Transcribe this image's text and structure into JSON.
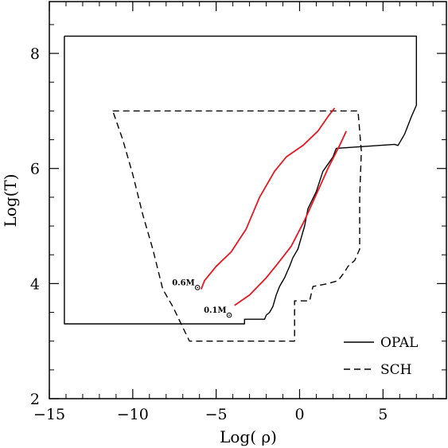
{
  "chart_data": {
    "type": "line",
    "xlabel": "Log( ρ)",
    "ylabel": "Log(T)",
    "xlim": [
      -15,
      8.8
    ],
    "ylim": [
      2,
      8.9
    ],
    "xticks": [
      -15,
      -10,
      -5,
      0,
      5
    ],
    "xtick_labels": [
      "−15",
      "−10",
      "−5",
      "0",
      "5"
    ],
    "yticks": [
      2,
      4,
      6,
      8
    ],
    "ytick_labels": [
      "2",
      "4",
      "6",
      "8"
    ],
    "grid": false,
    "legend_position": "bottom-right",
    "series": [
      {
        "name": "OPAL",
        "style": "solid",
        "color": "#000000",
        "points": [
          [
            -14.1,
            8.3
          ],
          [
            7.0,
            8.3
          ],
          [
            7.0,
            7.1
          ],
          [
            6.7,
            6.9
          ],
          [
            6.3,
            6.6
          ],
          [
            5.9,
            6.4
          ],
          [
            5.7,
            6.42
          ],
          [
            2.2,
            6.35
          ],
          [
            2.0,
            6.2
          ],
          [
            1.4,
            5.95
          ],
          [
            1.0,
            5.6
          ],
          [
            0.5,
            5.3
          ],
          [
            0.3,
            5.0
          ],
          [
            0.1,
            4.8
          ],
          [
            -0.1,
            4.6
          ],
          [
            -0.4,
            4.45
          ],
          [
            -0.6,
            4.3
          ],
          [
            -0.9,
            4.1
          ],
          [
            -1.2,
            3.95
          ],
          [
            -1.4,
            3.8
          ],
          [
            -1.6,
            3.6
          ],
          [
            -1.8,
            3.5
          ],
          [
            -2.0,
            3.45
          ],
          [
            -2.1,
            3.38
          ],
          [
            -3.3,
            3.38
          ],
          [
            -3.3,
            3.3
          ],
          [
            -14.1,
            3.3
          ],
          [
            -14.1,
            5.8
          ],
          [
            -14.1,
            8.3
          ]
        ]
      },
      {
        "name": "SCH",
        "style": "dashed",
        "color": "#000000",
        "points": [
          [
            -11.2,
            7.0
          ],
          [
            3.5,
            7.0
          ],
          [
            3.7,
            6.3
          ],
          [
            3.6,
            5.5
          ],
          [
            3.6,
            4.6
          ],
          [
            3.3,
            4.4
          ],
          [
            2.9,
            4.3
          ],
          [
            2.7,
            4.2
          ],
          [
            2.3,
            4.05
          ],
          [
            1.7,
            4.0
          ],
          [
            0.8,
            3.95
          ],
          [
            0.6,
            3.7
          ],
          [
            -0.3,
            3.7
          ],
          [
            -0.3,
            3.0
          ],
          [
            -6.6,
            3.0
          ],
          [
            -7.1,
            3.3
          ],
          [
            -7.6,
            3.6
          ],
          [
            -8.2,
            3.9
          ],
          [
            -8.8,
            4.6
          ],
          [
            -9.4,
            5.2
          ],
          [
            -10.0,
            5.9
          ],
          [
            -10.6,
            6.5
          ],
          [
            -11.2,
            7.0
          ]
        ]
      },
      {
        "name": "0.6M⊙",
        "style": "solid",
        "color": "#e8171f",
        "points": [
          [
            -5.9,
            3.9
          ],
          [
            -5.7,
            4.05
          ],
          [
            -5.0,
            4.3
          ],
          [
            -4.1,
            4.55
          ],
          [
            -3.2,
            4.95
          ],
          [
            -2.4,
            5.5
          ],
          [
            -1.5,
            5.95
          ],
          [
            -0.8,
            6.2
          ],
          [
            0.2,
            6.4
          ],
          [
            1.1,
            6.65
          ],
          [
            1.7,
            6.9
          ],
          [
            2.1,
            7.05
          ]
        ]
      },
      {
        "name": "0.1M⊙",
        "style": "solid",
        "color": "#e8171f",
        "points": [
          [
            -3.9,
            3.62
          ],
          [
            -3.0,
            3.8
          ],
          [
            -2.0,
            4.1
          ],
          [
            -1.3,
            4.35
          ],
          [
            -0.5,
            4.65
          ],
          [
            0.3,
            5.1
          ],
          [
            1.0,
            5.55
          ],
          [
            1.7,
            6.0
          ],
          [
            2.4,
            6.4
          ],
          [
            2.8,
            6.65
          ]
        ]
      }
    ],
    "legend": [
      {
        "name": "OPAL",
        "style": "solid"
      },
      {
        "name": "SCH",
        "style": "dashed"
      }
    ],
    "annotations": [
      {
        "text": "0.6M",
        "x": -6.0,
        "y": 4.0
      },
      {
        "text": "0.1M",
        "x": -4.1,
        "y": 3.52
      }
    ]
  }
}
